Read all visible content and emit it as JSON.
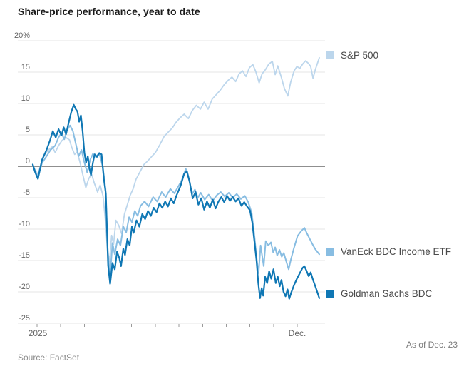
{
  "header": {
    "title": "Share-price performance, year to date"
  },
  "footer": {
    "source": "Source: FactSet",
    "as_of": "As of Dec. 23"
  },
  "colors": {
    "grid": "#e4e4e4",
    "zero_line": "#8f8f8f",
    "axis_tick": "#9a9a9a",
    "axis_text": "#666666",
    "legend_text": "#4a4a4a",
    "sp500": "#bcd6ec",
    "vaneck": "#88bde2",
    "goldman": "#0f77b4"
  },
  "chart_data": {
    "type": "line",
    "title": "Share-price performance, year to date",
    "xlabel": "",
    "ylabel": "",
    "unit": "%",
    "ylim": [
      -25,
      20
    ],
    "grid": true,
    "zero_line": true,
    "legend_position": "right",
    "y_axis": {
      "values": [
        20,
        15,
        10,
        5,
        0,
        -5,
        -10,
        -15,
        -20,
        -25
      ],
      "labels": [
        "20%",
        "15",
        "10",
        "5",
        "0",
        "-5",
        "-10",
        "-15",
        "-20",
        "-25"
      ]
    },
    "x_axis": {
      "tick_count": 12,
      "first_label": "2025",
      "last_label": "Dec.",
      "range_note": "Jan 2025 through Dec 23 2025, x given as fraction of span"
    },
    "series": [
      {
        "id": "sp500",
        "name": "S&P 500",
        "color": "#bcd6ec",
        "width": 1.8,
        "last_value": 17.3,
        "points": [
          [
            0,
            0.3
          ],
          [
            0.008,
            -0.6
          ],
          [
            0.018,
            -1.3
          ],
          [
            0.03,
            0.6
          ],
          [
            0.042,
            1.9
          ],
          [
            0.055,
            2.6
          ],
          [
            0.068,
            3.1
          ],
          [
            0.078,
            2.2
          ],
          [
            0.09,
            3.3
          ],
          [
            0.102,
            4.1
          ],
          [
            0.115,
            4.6
          ],
          [
            0.128,
            4.2
          ],
          [
            0.136,
            3
          ],
          [
            0.146,
            1.9
          ],
          [
            0.155,
            2.3
          ],
          [
            0.165,
            0.6
          ],
          [
            0.175,
            -1.4
          ],
          [
            0.185,
            -3.4
          ],
          [
            0.195,
            -2
          ],
          [
            0.205,
            -1.2
          ],
          [
            0.215,
            -2.7
          ],
          [
            0.226,
            -4.1
          ],
          [
            0.235,
            -3
          ],
          [
            0.245,
            -4.7
          ],
          [
            0.253,
            -8.4
          ],
          [
            0.261,
            -13.4
          ],
          [
            0.268,
            -15.2
          ],
          [
            0.275,
            -11
          ],
          [
            0.282,
            -12.4
          ],
          [
            0.29,
            -8.6
          ],
          [
            0.3,
            -9.4
          ],
          [
            0.31,
            -10.7
          ],
          [
            0.32,
            -7.6
          ],
          [
            0.33,
            -6.1
          ],
          [
            0.34,
            -4.6
          ],
          [
            0.35,
            -3.6
          ],
          [
            0.36,
            -2.1
          ],
          [
            0.374,
            -0.9
          ],
          [
            0.388,
            0.3
          ],
          [
            0.4,
            0.8
          ],
          [
            0.414,
            1.5
          ],
          [
            0.428,
            2.2
          ],
          [
            0.443,
            3.4
          ],
          [
            0.458,
            4.7
          ],
          [
            0.472,
            5.4
          ],
          [
            0.487,
            6.1
          ],
          [
            0.5,
            7
          ],
          [
            0.514,
            7.7
          ],
          [
            0.528,
            8.3
          ],
          [
            0.543,
            7.6
          ],
          [
            0.557,
            8.9
          ],
          [
            0.571,
            9.7
          ],
          [
            0.585,
            9.1
          ],
          [
            0.598,
            10.2
          ],
          [
            0.612,
            9.1
          ],
          [
            0.626,
            10.7
          ],
          [
            0.64,
            11.4
          ],
          [
            0.654,
            12.1
          ],
          [
            0.668,
            13
          ],
          [
            0.682,
            13.7
          ],
          [
            0.695,
            14.2
          ],
          [
            0.708,
            13.5
          ],
          [
            0.72,
            14.7
          ],
          [
            0.732,
            15.2
          ],
          [
            0.744,
            14.3
          ],
          [
            0.756,
            15.7
          ],
          [
            0.768,
            16.2
          ],
          [
            0.778,
            15.1
          ],
          [
            0.79,
            13.3
          ],
          [
            0.8,
            14.7
          ],
          [
            0.812,
            15.4
          ],
          [
            0.824,
            16.3
          ],
          [
            0.836,
            16.7
          ],
          [
            0.846,
            14.6
          ],
          [
            0.855,
            16
          ],
          [
            0.868,
            14.1
          ],
          [
            0.878,
            12.4
          ],
          [
            0.89,
            11.2
          ],
          [
            0.9,
            13.4
          ],
          [
            0.912,
            15.2
          ],
          [
            0.922,
            15.9
          ],
          [
            0.932,
            15.6
          ],
          [
            0.942,
            16.3
          ],
          [
            0.952,
            16.8
          ],
          [
            0.962,
            16.4
          ],
          [
            0.97,
            15.9
          ],
          [
            0.978,
            14
          ],
          [
            0.986,
            15.4
          ],
          [
            1,
            17.3
          ]
        ]
      },
      {
        "id": "vaneck",
        "name": "VanEck BDC Income ETF",
        "color": "#88bde2",
        "width": 2,
        "last_value": -14,
        "points": [
          [
            0,
            0.2
          ],
          [
            0.008,
            -0.7
          ],
          [
            0.018,
            -1.8
          ],
          [
            0.032,
            0.5
          ],
          [
            0.048,
            1.6
          ],
          [
            0.062,
            2.6
          ],
          [
            0.078,
            3.3
          ],
          [
            0.09,
            4.6
          ],
          [
            0.1,
            5.3
          ],
          [
            0.11,
            4.3
          ],
          [
            0.12,
            5.8
          ],
          [
            0.13,
            6.5
          ],
          [
            0.14,
            5.6
          ],
          [
            0.15,
            3.6
          ],
          [
            0.16,
            1.6
          ],
          [
            0.17,
            2.6
          ],
          [
            0.18,
            0.6
          ],
          [
            0.19,
            -1
          ],
          [
            0.2,
            1
          ],
          [
            0.21,
            2
          ],
          [
            0.22,
            1.5
          ],
          [
            0.232,
            2.1
          ],
          [
            0.244,
            0
          ],
          [
            0.254,
            -3.6
          ],
          [
            0.262,
            -13.8
          ],
          [
            0.27,
            -17.4
          ],
          [
            0.278,
            -12.2
          ],
          [
            0.286,
            -14
          ],
          [
            0.296,
            -11.6
          ],
          [
            0.306,
            -12.6
          ],
          [
            0.316,
            -9.6
          ],
          [
            0.326,
            -10.5
          ],
          [
            0.336,
            -8.1
          ],
          [
            0.346,
            -8.9
          ],
          [
            0.356,
            -7.1
          ],
          [
            0.366,
            -7.9
          ],
          [
            0.376,
            -6.3
          ],
          [
            0.39,
            -5.6
          ],
          [
            0.404,
            -6.4
          ],
          [
            0.42,
            -4.9
          ],
          [
            0.434,
            -5.6
          ],
          [
            0.45,
            -4.1
          ],
          [
            0.464,
            -4.9
          ],
          [
            0.48,
            -3.6
          ],
          [
            0.494,
            -4.3
          ],
          [
            0.508,
            -3.2
          ],
          [
            0.52,
            -2.2
          ],
          [
            0.534,
            -0.4
          ],
          [
            0.546,
            -2.2
          ],
          [
            0.556,
            -4.4
          ],
          [
            0.566,
            -3.7
          ],
          [
            0.576,
            -5
          ],
          [
            0.586,
            -4.2
          ],
          [
            0.6,
            -5.3
          ],
          [
            0.614,
            -4.5
          ],
          [
            0.628,
            -5.5
          ],
          [
            0.642,
            -4.6
          ],
          [
            0.656,
            -4.1
          ],
          [
            0.67,
            -4.8
          ],
          [
            0.684,
            -4.2
          ],
          [
            0.698,
            -5
          ],
          [
            0.712,
            -4.4
          ],
          [
            0.726,
            -5.2
          ],
          [
            0.74,
            -4.7
          ],
          [
            0.752,
            -5.7
          ],
          [
            0.764,
            -7.4
          ],
          [
            0.773,
            -10.8
          ],
          [
            0.781,
            -14.6
          ],
          [
            0.788,
            -17
          ],
          [
            0.795,
            -12.6
          ],
          [
            0.801,
            -14.4
          ],
          [
            0.806,
            -15.9
          ],
          [
            0.813,
            -11.9
          ],
          [
            0.822,
            -12.6
          ],
          [
            0.831,
            -12.1
          ],
          [
            0.839,
            -13.7
          ],
          [
            0.846,
            -12.9
          ],
          [
            0.853,
            -14.2
          ],
          [
            0.861,
            -13.3
          ],
          [
            0.869,
            -14.4
          ],
          [
            0.876,
            -13.8
          ],
          [
            0.885,
            -15.2
          ],
          [
            0.893,
            -16.4
          ],
          [
            0.901,
            -14.8
          ],
          [
            0.911,
            -13.1
          ],
          [
            0.924,
            -11.1
          ],
          [
            0.937,
            -10.3
          ],
          [
            0.948,
            -9.8
          ],
          [
            0.956,
            -10.6
          ],
          [
            0.966,
            -11.5
          ],
          [
            0.976,
            -12.4
          ],
          [
            0.986,
            -13.2
          ],
          [
            1,
            -14
          ]
        ]
      },
      {
        "id": "goldman",
        "name": "Goldman Sachs BDC",
        "color": "#0f77b4",
        "width": 2.2,
        "last_value": -21,
        "points": [
          [
            0,
            0.3
          ],
          [
            0.008,
            -0.9
          ],
          [
            0.018,
            -2
          ],
          [
            0.032,
            1
          ],
          [
            0.048,
            2.6
          ],
          [
            0.06,
            4.1
          ],
          [
            0.07,
            5.6
          ],
          [
            0.08,
            4.6
          ],
          [
            0.09,
            5.9
          ],
          [
            0.1,
            4.9
          ],
          [
            0.108,
            6.2
          ],
          [
            0.116,
            5.1
          ],
          [
            0.126,
            7.1
          ],
          [
            0.134,
            8.6
          ],
          [
            0.143,
            9.8
          ],
          [
            0.15,
            9.1
          ],
          [
            0.156,
            8.7
          ],
          [
            0.162,
            7.1
          ],
          [
            0.168,
            8.1
          ],
          [
            0.174,
            5.6
          ],
          [
            0.18,
            2.1
          ],
          [
            0.186,
            0.6
          ],
          [
            0.192,
            1.6
          ],
          [
            0.198,
            -0.4
          ],
          [
            0.203,
            -1.4
          ],
          [
            0.21,
            0.6
          ],
          [
            0.216,
            1.9
          ],
          [
            0.224,
            1.5
          ],
          [
            0.232,
            2.1
          ],
          [
            0.24,
            1.9
          ],
          [
            0.248,
            -2
          ],
          [
            0.255,
            -4.4
          ],
          [
            0.263,
            -15.8
          ],
          [
            0.27,
            -18.7
          ],
          [
            0.278,
            -15.4
          ],
          [
            0.286,
            -16.4
          ],
          [
            0.294,
            -13.6
          ],
          [
            0.302,
            -14.6
          ],
          [
            0.308,
            -15.9
          ],
          [
            0.316,
            -13.1
          ],
          [
            0.322,
            -14.1
          ],
          [
            0.33,
            -11.6
          ],
          [
            0.338,
            -12.6
          ],
          [
            0.346,
            -9.6
          ],
          [
            0.352,
            -10.6
          ],
          [
            0.362,
            -8.6
          ],
          [
            0.372,
            -9.6
          ],
          [
            0.382,
            -7.6
          ],
          [
            0.392,
            -8.4
          ],
          [
            0.402,
            -7.1
          ],
          [
            0.412,
            -7.9
          ],
          [
            0.422,
            -6.6
          ],
          [
            0.432,
            -7.3
          ],
          [
            0.442,
            -5.9
          ],
          [
            0.452,
            -6.6
          ],
          [
            0.462,
            -5.6
          ],
          [
            0.472,
            -6.4
          ],
          [
            0.482,
            -5.1
          ],
          [
            0.492,
            -5.9
          ],
          [
            0.502,
            -4.6
          ],
          [
            0.516,
            -3.1
          ],
          [
            0.528,
            -1.2
          ],
          [
            0.538,
            -0.8
          ],
          [
            0.548,
            -2.6
          ],
          [
            0.558,
            -5.1
          ],
          [
            0.568,
            -4.1
          ],
          [
            0.578,
            -6.1
          ],
          [
            0.588,
            -5.1
          ],
          [
            0.598,
            -6.9
          ],
          [
            0.608,
            -5.6
          ],
          [
            0.618,
            -6.6
          ],
          [
            0.628,
            -5.3
          ],
          [
            0.638,
            -6.7
          ],
          [
            0.648,
            -5.6
          ],
          [
            0.658,
            -4.9
          ],
          [
            0.668,
            -5.7
          ],
          [
            0.678,
            -4.7
          ],
          [
            0.688,
            -5.5
          ],
          [
            0.698,
            -4.9
          ],
          [
            0.708,
            -5.6
          ],
          [
            0.718,
            -5.1
          ],
          [
            0.728,
            -6.3
          ],
          [
            0.738,
            -5.7
          ],
          [
            0.748,
            -6.4
          ],
          [
            0.758,
            -7
          ],
          [
            0.766,
            -8.9
          ],
          [
            0.774,
            -12.1
          ],
          [
            0.781,
            -15.1
          ],
          [
            0.787,
            -18.6
          ],
          [
            0.793,
            -21
          ],
          [
            0.799,
            -19.4
          ],
          [
            0.804,
            -20.6
          ],
          [
            0.811,
            -17.6
          ],
          [
            0.818,
            -18.6
          ],
          [
            0.825,
            -16.7
          ],
          [
            0.832,
            -17.9
          ],
          [
            0.84,
            -16.4
          ],
          [
            0.848,
            -18.6
          ],
          [
            0.855,
            -17.6
          ],
          [
            0.862,
            -19.1
          ],
          [
            0.868,
            -18.1
          ],
          [
            0.875,
            -20
          ],
          [
            0.882,
            -20.7
          ],
          [
            0.889,
            -19.6
          ],
          [
            0.895,
            -21.1
          ],
          [
            0.902,
            -20.1
          ],
          [
            0.912,
            -18.9
          ],
          [
            0.922,
            -17.9
          ],
          [
            0.932,
            -17
          ],
          [
            0.941,
            -16.2
          ],
          [
            0.948,
            -15.9
          ],
          [
            0.956,
            -16.7
          ],
          [
            0.963,
            -17.5
          ],
          [
            0.97,
            -16.9
          ],
          [
            0.978,
            -18.1
          ],
          [
            0.986,
            -19.1
          ],
          [
            1,
            -21
          ]
        ]
      }
    ]
  }
}
